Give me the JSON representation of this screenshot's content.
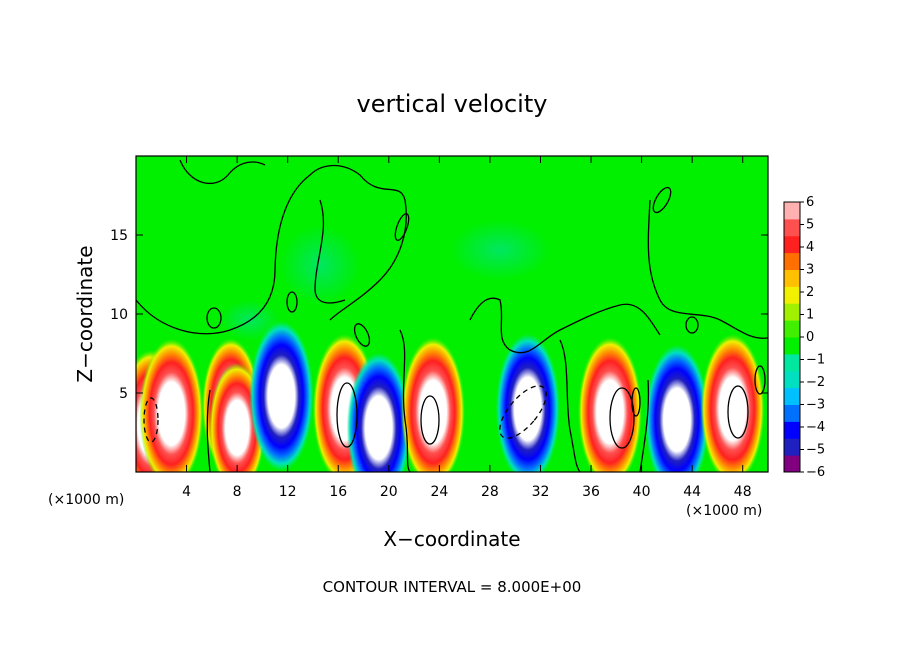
{
  "chart_data": {
    "type": "heatmap",
    "title": "vertical velocity",
    "xlabel": "X−coordinate",
    "ylabel": "Z−coordinate",
    "x_unit_label": "(×1000 m)",
    "x_ticks": [
      "4",
      "8",
      "12",
      "16",
      "20",
      "24",
      "28",
      "32",
      "36",
      "40",
      "44",
      "48"
    ],
    "x_tick_values": [
      4,
      8,
      12,
      16,
      20,
      24,
      28,
      32,
      36,
      40,
      44,
      48
    ],
    "y_ticks": [
      "5",
      "10",
      "15"
    ],
    "y_tick_values": [
      5,
      10,
      15
    ],
    "xlim": [
      0,
      50
    ],
    "ylim": [
      0,
      20
    ],
    "footer": "CONTOUR INTERVAL = 8.000E+00",
    "colorbar": {
      "min": -6,
      "max": 6,
      "tick_labels": [
        "6",
        "5",
        "4",
        "3",
        "2",
        "1",
        "0",
        "−1",
        "−2",
        "−3",
        "−4",
        "−5",
        "−6"
      ],
      "colors": [
        "#800080",
        "#2020c0",
        "#0000ff",
        "#0070ff",
        "#00c0ff",
        "#00e0c0",
        "#00e8a0",
        "#00f000",
        "#40f000",
        "#a0f000",
        "#f0f000",
        "#ffc000",
        "#ff7000",
        "#ff2020",
        "#ff5050",
        "#ffb0b0"
      ]
    },
    "cells": [
      {
        "x": 1.2,
        "z": 3.0,
        "w": 1.0
      },
      {
        "x": 2.8,
        "z": 3.7,
        "w": 1.0
      },
      {
        "x": 7.5,
        "z": 4.2,
        "w": 0.7
      },
      {
        "x": 8.0,
        "z": 2.8,
        "w": 0.6
      },
      {
        "x": 11.5,
        "z": 4.8,
        "w": -1.0
      },
      {
        "x": 16.5,
        "z": 4.0,
        "w": 1.0
      },
      {
        "x": 19.2,
        "z": 2.8,
        "w": -1.0
      },
      {
        "x": 23.5,
        "z": 3.8,
        "w": 1.0
      },
      {
        "x": 31.0,
        "z": 4.0,
        "w": -1.0
      },
      {
        "x": 37.5,
        "z": 3.8,
        "w": 1.0
      },
      {
        "x": 42.8,
        "z": 3.3,
        "w": -1.0
      },
      {
        "x": 47.2,
        "z": 4.0,
        "w": 1.0
      }
    ]
  }
}
